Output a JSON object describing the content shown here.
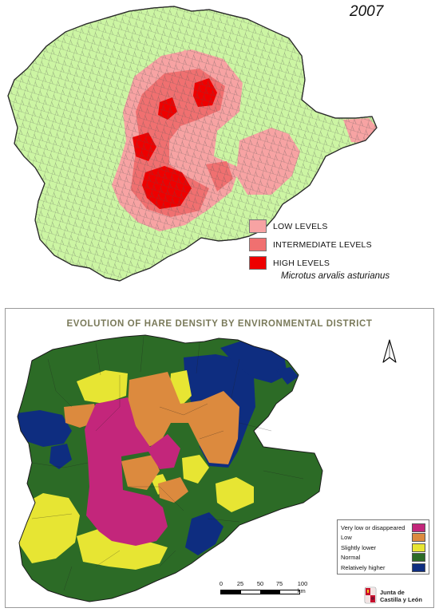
{
  "top_map": {
    "year": "2007",
    "legend": [
      {
        "label": "LOW LEVELS",
        "color": "#f7a3a3"
      },
      {
        "label": "INTERMEDIATE LEVELS",
        "color": "#f07070"
      },
      {
        "label": "HIGH LEVELS",
        "color": "#ee0000"
      }
    ],
    "species": "Microtus arvalis asturianus",
    "base_color": "#ccf5a3"
  },
  "bottom_map": {
    "title": "EVOLUTION OF HARE DENSITY BY ENVIRONMENTAL DISTRICT",
    "legend": [
      {
        "label": "Very low or disappeared",
        "color": "#c3267b"
      },
      {
        "label": "Low",
        "color": "#dc8a3e"
      },
      {
        "label": "Slightly lower",
        "color": "#e7e533"
      },
      {
        "label": "Normal",
        "color": "#2c6b26"
      },
      {
        "label": "Relatively higher",
        "color": "#0e2d80"
      }
    ],
    "scale": {
      "ticks": [
        "0",
        "25",
        "50",
        "75",
        "100 km"
      ]
    },
    "north_arrow": "north-arrow-icon",
    "logo": {
      "line1": "Junta de",
      "line2": "Castilla y León"
    }
  }
}
